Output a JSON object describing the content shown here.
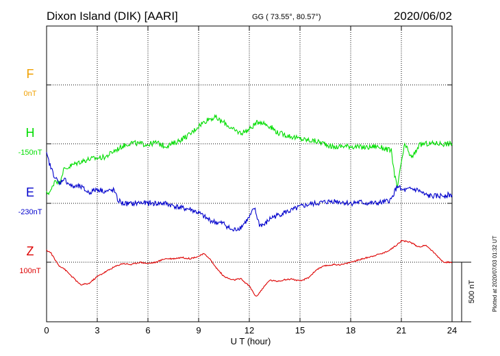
{
  "header": {
    "station": "Dixon Island (DIK)  [AARI]",
    "coords": "GG ( 73.55°,  80.57°)",
    "date": "2020/06/02"
  },
  "side_note": "Plotted at 2020/07/03 01:32 UT",
  "colors": {
    "F": "#f0a000",
    "H": "#00dd00",
    "E": "#0000cc",
    "Z": "#dd0000",
    "axis": "#000000",
    "grid": "#000000"
  },
  "chart_data": {
    "type": "line",
    "title": "Dixon Island (DIK)  [AARI]",
    "xlabel": "U T (hour)",
    "ylabel": "",
    "xlim": [
      0,
      24
    ],
    "x_ticks": [
      "0",
      "3",
      "6",
      "9",
      "12",
      "15",
      "18",
      "21",
      "24"
    ],
    "grid": true,
    "scale_bar": {
      "label": "500 nT",
      "value_nT": 500
    },
    "panel_units_nT": 500,
    "series": [
      {
        "name": "F",
        "baseline_label": "0nT",
        "baseline_nT": 0,
        "x": [],
        "values": []
      },
      {
        "name": "H",
        "baseline_label": "-150nT",
        "baseline_nT": -150,
        "x": [
          0,
          0.25,
          0.5,
          0.75,
          1,
          1.5,
          2,
          2.5,
          3,
          3.5,
          4,
          4.5,
          5,
          5.5,
          6,
          6.5,
          7,
          7.5,
          8,
          8.5,
          9,
          9.3,
          9.6,
          10,
          10.3,
          10.6,
          11,
          11.5,
          12,
          12.3,
          12.6,
          12.9,
          13.3,
          13.7,
          14,
          14.5,
          15,
          15.5,
          16,
          16.5,
          17,
          17.5,
          18,
          18.5,
          19,
          19.5,
          20,
          20.4,
          20.6,
          20.75,
          20.85,
          21,
          21.2,
          21.4,
          21.6,
          21.8,
          22,
          22.3,
          22.6,
          23,
          23.5,
          24
        ],
        "values": [
          -415,
          -400,
          -300,
          -330,
          -220,
          -180,
          -150,
          -130,
          -120,
          -110,
          -60,
          -20,
          10,
          0,
          -5,
          10,
          -20,
          0,
          40,
          80,
          150,
          180,
          210,
          220,
          190,
          170,
          120,
          90,
          120,
          160,
          190,
          170,
          140,
          90,
          80,
          60,
          40,
          30,
          20,
          0,
          -30,
          -20,
          -20,
          -30,
          -30,
          -20,
          -40,
          -60,
          -260,
          -370,
          -300,
          -150,
          -10,
          -60,
          -120,
          -80,
          -20,
          0,
          0,
          5,
          0,
          0
        ]
      },
      {
        "name": "E",
        "baseline_label": "-230nT",
        "baseline_nT": -230,
        "x": [
          0,
          0.25,
          0.5,
          0.75,
          1,
          1.5,
          2,
          2.5,
          3,
          3.5,
          4,
          4.2,
          4.5,
          5,
          5.5,
          6,
          6.5,
          7,
          7.5,
          8,
          8.5,
          9,
          9.5,
          10,
          10.5,
          11,
          11.5,
          12,
          12.3,
          12.6,
          12.9,
          13.3,
          13.7,
          14,
          14.5,
          15,
          15.5,
          16,
          16.5,
          17,
          17.5,
          18,
          18.5,
          19,
          19.5,
          20,
          20.4,
          20.6,
          20.8,
          21,
          21.3,
          21.6,
          22,
          22.4,
          22.8,
          23.2,
          23.6,
          24
        ],
        "values": [
          410,
          300,
          220,
          160,
          210,
          140,
          140,
          90,
          120,
          100,
          110,
          30,
          0,
          -5,
          5,
          0,
          0,
          0,
          -20,
          -40,
          -50,
          -80,
          -130,
          -160,
          -170,
          -230,
          -200,
          -120,
          -40,
          -180,
          -180,
          -120,
          -100,
          -80,
          -60,
          -30,
          -10,
          0,
          10,
          20,
          10,
          0,
          10,
          0,
          0,
          10,
          30,
          100,
          150,
          110,
          110,
          120,
          110,
          70,
          60,
          60,
          70,
          70
        ]
      },
      {
        "name": "Z",
        "baseline_label": "100nT",
        "baseline_nT": 100,
        "x": [
          0,
          0.25,
          0.5,
          0.75,
          1,
          1.5,
          2,
          2.5,
          3,
          3.5,
          4,
          4.5,
          5,
          5.5,
          6,
          6.5,
          7,
          7.5,
          8,
          8.5,
          9,
          9.3,
          9.6,
          10,
          10.5,
          11,
          11.5,
          12,
          12.4,
          12.8,
          13.2,
          13.6,
          14,
          14.5,
          15,
          15.5,
          16,
          16.5,
          17,
          17.5,
          18,
          18.5,
          19,
          19.5,
          20,
          20.5,
          21,
          21.5,
          22,
          22.5,
          23,
          23.5,
          24
        ],
        "values": [
          100,
          80,
          20,
          -30,
          -50,
          -120,
          -190,
          -180,
          -120,
          -80,
          -40,
          -10,
          -20,
          0,
          -10,
          0,
          30,
          30,
          40,
          30,
          50,
          70,
          40,
          -40,
          -120,
          -150,
          -140,
          -200,
          -290,
          -220,
          -150,
          -160,
          -150,
          -140,
          -160,
          -130,
          -60,
          -30,
          -20,
          -20,
          0,
          20,
          40,
          60,
          80,
          120,
          180,
          170,
          130,
          140,
          70,
          0,
          0
        ]
      }
    ]
  }
}
